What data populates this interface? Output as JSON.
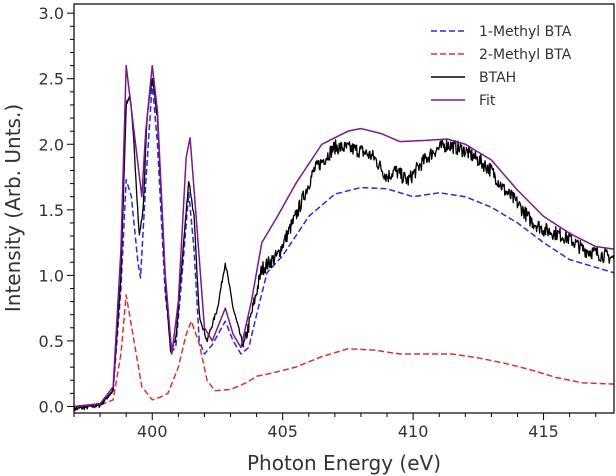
{
  "chart_data": {
    "type": "line",
    "title": "",
    "xlabel": "Photon Energy (eV)",
    "ylabel": "Intensity (Arb. Unts.)",
    "xlim": [
      397,
      417.7
    ],
    "ylim": [
      -0.05,
      3.07
    ],
    "x_ticks": [
      400,
      405,
      410,
      415
    ],
    "x_tick_labels": [
      "400",
      "405",
      "410",
      "415"
    ],
    "y_ticks": [
      0.0,
      0.5,
      1.0,
      1.5,
      2.0,
      2.5,
      3.0
    ],
    "y_tick_labels": [
      "0.0",
      "0.5",
      "1.0",
      "1.5",
      "2.0",
      "2.5",
      "3.0"
    ],
    "grid": false,
    "legend_position": "top-right",
    "series": [
      {
        "name": "1-Methyl BTA",
        "color": "#2b2bdb",
        "style": "dashed",
        "points": [
          [
            397,
            0.0
          ],
          [
            398,
            0.02
          ],
          [
            398.5,
            0.12
          ],
          [
            398.8,
            0.9
          ],
          [
            399.0,
            1.73
          ],
          [
            399.2,
            1.6
          ],
          [
            399.45,
            1.1
          ],
          [
            399.55,
            0.98
          ],
          [
            399.75,
            1.7
          ],
          [
            400.0,
            2.47
          ],
          [
            400.2,
            2.0
          ],
          [
            400.5,
            0.85
          ],
          [
            400.75,
            0.42
          ],
          [
            400.9,
            0.45
          ],
          [
            401.1,
            0.9
          ],
          [
            401.4,
            1.63
          ],
          [
            401.6,
            1.2
          ],
          [
            401.8,
            0.5
          ],
          [
            402.0,
            0.4
          ],
          [
            402.3,
            0.47
          ],
          [
            402.8,
            0.65
          ],
          [
            403.1,
            0.5
          ],
          [
            403.4,
            0.4
          ],
          [
            403.7,
            0.45
          ],
          [
            404.0,
            0.7
          ],
          [
            404.4,
            1.02
          ],
          [
            405.0,
            1.15
          ],
          [
            406.0,
            1.45
          ],
          [
            407.0,
            1.62
          ],
          [
            408.0,
            1.67
          ],
          [
            409.0,
            1.66
          ],
          [
            410.0,
            1.6
          ],
          [
            411.0,
            1.63
          ],
          [
            412.0,
            1.6
          ],
          [
            413.0,
            1.52
          ],
          [
            414.0,
            1.4
          ],
          [
            415.0,
            1.25
          ],
          [
            416.0,
            1.12
          ],
          [
            417.7,
            1.02
          ]
        ]
      },
      {
        "name": "2-Methyl BTA",
        "color": "#e03030",
        "style": "dashed",
        "points": [
          [
            397,
            0.0
          ],
          [
            398,
            0.01
          ],
          [
            398.5,
            0.05
          ],
          [
            398.8,
            0.4
          ],
          [
            399.0,
            0.85
          ],
          [
            399.3,
            0.5
          ],
          [
            399.6,
            0.15
          ],
          [
            400.0,
            0.05
          ],
          [
            400.3,
            0.07
          ],
          [
            400.6,
            0.1
          ],
          [
            401.0,
            0.3
          ],
          [
            401.3,
            0.55
          ],
          [
            401.5,
            0.65
          ],
          [
            401.8,
            0.48
          ],
          [
            402.1,
            0.2
          ],
          [
            402.4,
            0.12
          ],
          [
            403.0,
            0.13
          ],
          [
            403.6,
            0.18
          ],
          [
            404.0,
            0.23
          ],
          [
            404.5,
            0.25
          ],
          [
            405.5,
            0.3
          ],
          [
            406.5,
            0.38
          ],
          [
            407.5,
            0.44
          ],
          [
            408.5,
            0.43
          ],
          [
            409.5,
            0.4
          ],
          [
            410.5,
            0.4
          ],
          [
            411.5,
            0.4
          ],
          [
            412.5,
            0.37
          ],
          [
            413.5,
            0.33
          ],
          [
            414.5,
            0.28
          ],
          [
            415.5,
            0.22
          ],
          [
            416.5,
            0.18
          ],
          [
            417.7,
            0.17
          ]
        ]
      },
      {
        "name": "BTAH",
        "color": "#000000",
        "style": "solid",
        "noisy": true,
        "points": [
          [
            397,
            -0.02
          ],
          [
            398,
            0.01
          ],
          [
            398.5,
            0.12
          ],
          [
            398.8,
            1.0
          ],
          [
            399.0,
            2.3
          ],
          [
            399.15,
            2.38
          ],
          [
            399.3,
            2.0
          ],
          [
            399.5,
            1.3
          ],
          [
            399.65,
            1.5
          ],
          [
            399.8,
            2.2
          ],
          [
            400.0,
            2.52
          ],
          [
            400.2,
            2.2
          ],
          [
            400.5,
            0.95
          ],
          [
            400.7,
            0.42
          ],
          [
            400.9,
            0.5
          ],
          [
            401.1,
            1.0
          ],
          [
            401.4,
            1.73
          ],
          [
            401.6,
            1.45
          ],
          [
            401.8,
            0.7
          ],
          [
            402.1,
            0.5
          ],
          [
            402.5,
            0.75
          ],
          [
            402.8,
            1.1
          ],
          [
            403.1,
            0.75
          ],
          [
            403.5,
            0.45
          ],
          [
            403.8,
            0.7
          ],
          [
            404.2,
            1.05
          ],
          [
            404.8,
            1.15
          ],
          [
            405.5,
            1.45
          ],
          [
            406.2,
            1.8
          ],
          [
            407.0,
            1.98
          ],
          [
            407.5,
            1.97
          ],
          [
            408.0,
            1.95
          ],
          [
            408.5,
            1.9
          ],
          [
            409.0,
            1.75
          ],
          [
            409.3,
            1.8
          ],
          [
            409.8,
            1.72
          ],
          [
            410.3,
            1.85
          ],
          [
            410.8,
            1.95
          ],
          [
            411.3,
            2.0
          ],
          [
            412.0,
            1.95
          ],
          [
            412.5,
            1.88
          ],
          [
            413.0,
            1.8
          ],
          [
            413.5,
            1.65
          ],
          [
            414.0,
            1.55
          ],
          [
            414.5,
            1.42
          ],
          [
            415.0,
            1.35
          ],
          [
            415.5,
            1.32
          ],
          [
            416.0,
            1.28
          ],
          [
            416.5,
            1.2
          ],
          [
            417.0,
            1.17
          ],
          [
            417.7,
            1.13
          ]
        ]
      },
      {
        "name": "Fit",
        "color": "#7b1890",
        "style": "solid",
        "points": [
          [
            397,
            0.0
          ],
          [
            398,
            0.02
          ],
          [
            398.5,
            0.15
          ],
          [
            398.8,
            1.2
          ],
          [
            399.0,
            2.6
          ],
          [
            399.3,
            2.1
          ],
          [
            399.6,
            1.6
          ],
          [
            399.75,
            2.1
          ],
          [
            400.0,
            2.6
          ],
          [
            400.2,
            2.25
          ],
          [
            400.5,
            1.0
          ],
          [
            400.75,
            0.4
          ],
          [
            401.0,
            0.8
          ],
          [
            401.3,
            1.9
          ],
          [
            401.45,
            2.05
          ],
          [
            401.7,
            1.4
          ],
          [
            402.0,
            0.6
          ],
          [
            402.3,
            0.5
          ],
          [
            402.8,
            0.75
          ],
          [
            403.1,
            0.55
          ],
          [
            403.4,
            0.45
          ],
          [
            403.8,
            0.8
          ],
          [
            404.2,
            1.25
          ],
          [
            404.8,
            1.45
          ],
          [
            405.5,
            1.7
          ],
          [
            406.5,
            2.0
          ],
          [
            407.5,
            2.1
          ],
          [
            408.0,
            2.12
          ],
          [
            408.8,
            2.08
          ],
          [
            409.5,
            2.02
          ],
          [
            410.5,
            2.03
          ],
          [
            411.3,
            2.04
          ],
          [
            412.0,
            2.0
          ],
          [
            413.0,
            1.88
          ],
          [
            414.0,
            1.65
          ],
          [
            415.0,
            1.45
          ],
          [
            416.0,
            1.32
          ],
          [
            417.0,
            1.22
          ],
          [
            417.7,
            1.2
          ]
        ]
      }
    ]
  }
}
